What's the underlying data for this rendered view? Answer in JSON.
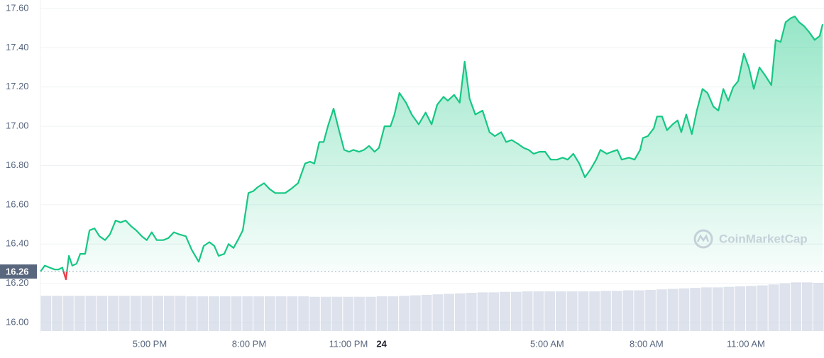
{
  "chart_data": {
    "type": "line",
    "xlim": [
      13.7,
      37.36
    ],
    "xticks": [
      {
        "value": 17,
        "label": "5:00 PM"
      },
      {
        "value": 20,
        "label": "8:00 PM"
      },
      {
        "value": 23,
        "label": "11:00 PM"
      },
      {
        "value": 24,
        "label": "24"
      },
      {
        "value": 29,
        "label": "5:00 AM"
      },
      {
        "value": 32,
        "label": "8:00 AM"
      },
      {
        "value": 35,
        "label": "11:00 AM"
      }
    ],
    "ylim": [
      16.0,
      17.6
    ],
    "yticks": [
      {
        "value": 16.0,
        "label": "16.00"
      },
      {
        "value": 16.2,
        "label": "16.20"
      },
      {
        "value": 16.4,
        "label": "16.40"
      },
      {
        "value": 16.6,
        "label": "16.60"
      },
      {
        "value": 16.8,
        "label": "16.80"
      },
      {
        "value": 17.0,
        "label": "17.00"
      },
      {
        "value": 17.2,
        "label": "17.20"
      },
      {
        "value": 17.4,
        "label": "17.40"
      },
      {
        "value": 17.6,
        "label": "17.60"
      }
    ],
    "grid": true,
    "baseline": 16.26,
    "watermark": "CoinMarketCap",
    "color": "#16c784",
    "down_color": "#ea3943",
    "x": [
      13.7,
      13.83,
      13.98,
      14.13,
      14.24,
      14.36,
      14.47,
      14.56,
      14.66,
      14.79,
      14.9,
      15.05,
      15.18,
      15.33,
      15.48,
      15.65,
      15.8,
      15.97,
      16.12,
      16.27,
      16.44,
      16.59,
      16.76,
      16.91,
      17.06,
      17.21,
      17.41,
      17.56,
      17.73,
      17.88,
      18.09,
      18.27,
      18.48,
      18.63,
      18.8,
      18.95,
      19.08,
      19.25,
      19.38,
      19.53,
      19.66,
      19.81,
      19.98,
      20.13,
      20.26,
      20.45,
      20.62,
      20.79,
      20.94,
      21.09,
      21.26,
      21.48,
      21.69,
      21.84,
      21.97,
      22.12,
      22.25,
      22.38,
      22.55,
      22.7,
      22.87,
      23.02,
      23.15,
      23.32,
      23.47,
      23.62,
      23.79,
      23.92,
      24.09,
      24.27,
      24.39,
      24.54,
      24.74,
      24.91,
      25.12,
      25.33,
      25.51,
      25.68,
      25.87,
      26.0,
      26.19,
      26.36,
      26.51,
      26.66,
      26.83,
      27.05,
      27.26,
      27.42,
      27.61,
      27.76,
      27.93,
      28.12,
      28.29,
      28.44,
      28.59,
      28.77,
      28.94,
      29.11,
      29.3,
      29.47,
      29.62,
      29.79,
      29.97,
      30.14,
      30.31,
      30.48,
      30.61,
      30.8,
      30.95,
      31.12,
      31.25,
      31.47,
      31.64,
      31.81,
      31.89,
      32.04,
      32.22,
      32.32,
      32.47,
      32.62,
      32.79,
      32.94,
      33.05,
      33.2,
      33.37,
      33.52,
      33.69,
      33.84,
      34.02,
      34.17,
      34.32,
      34.47,
      34.62,
      34.77,
      34.94,
      35.09,
      35.24,
      35.41,
      35.58,
      35.77,
      35.9,
      36.05,
      36.2,
      36.35,
      36.48,
      36.61,
      36.76,
      36.91,
      37.08,
      37.23,
      37.32
    ],
    "values": [
      16.26,
      16.29,
      16.28,
      16.27,
      16.27,
      16.28,
      16.22,
      16.34,
      16.29,
      16.3,
      16.35,
      16.35,
      16.47,
      16.48,
      16.44,
      16.42,
      16.45,
      16.52,
      16.51,
      16.52,
      16.49,
      16.47,
      16.44,
      16.42,
      16.46,
      16.42,
      16.42,
      16.43,
      16.46,
      16.45,
      16.44,
      16.37,
      16.31,
      16.39,
      16.41,
      16.39,
      16.34,
      16.35,
      16.4,
      16.38,
      16.42,
      16.47,
      16.66,
      16.67,
      16.69,
      16.71,
      16.68,
      16.66,
      16.66,
      16.66,
      16.68,
      16.71,
      16.81,
      16.82,
      16.81,
      16.92,
      16.92,
      17.0,
      17.09,
      16.99,
      16.88,
      16.87,
      16.88,
      16.87,
      16.88,
      16.9,
      16.87,
      16.89,
      17.0,
      17.0,
      17.06,
      17.17,
      17.12,
      17.06,
      17.01,
      17.07,
      17.01,
      17.11,
      17.15,
      17.13,
      17.16,
      17.12,
      17.33,
      17.14,
      17.06,
      17.08,
      16.97,
      16.95,
      16.97,
      16.92,
      16.93,
      16.91,
      16.89,
      16.88,
      16.86,
      16.87,
      16.87,
      16.83,
      16.83,
      16.84,
      16.83,
      16.86,
      16.81,
      16.74,
      16.78,
      16.83,
      16.88,
      16.86,
      16.87,
      16.88,
      16.83,
      16.84,
      16.83,
      16.88,
      16.94,
      16.95,
      16.99,
      17.05,
      17.05,
      16.98,
      17.01,
      17.03,
      16.97,
      17.06,
      16.96,
      17.08,
      17.19,
      17.17,
      17.1,
      17.08,
      17.19,
      17.13,
      17.2,
      17.23,
      17.37,
      17.3,
      17.19,
      17.3,
      17.26,
      17.21,
      17.44,
      17.43,
      17.53,
      17.55,
      17.56,
      17.53,
      17.51,
      17.48,
      17.44,
      17.46,
      17.52
    ],
    "volume": {
      "color": "#cfd6e4",
      "ylim": [
        0,
        100
      ],
      "values": [
        71,
        71,
        71,
        71,
        71,
        71,
        71,
        71,
        71,
        71,
        71,
        71,
        71,
        70,
        70,
        70,
        70,
        70,
        70,
        70,
        70,
        70,
        70,
        70,
        69,
        69,
        69,
        69,
        69,
        69,
        70,
        70,
        71,
        72,
        73,
        74,
        75,
        76,
        77,
        78,
        78,
        79,
        79,
        80,
        80,
        80,
        80,
        80,
        80,
        80,
        81,
        81,
        82,
        82,
        83,
        84,
        85,
        86,
        87,
        88,
        88,
        89,
        90,
        91,
        92,
        94,
        96,
        98,
        98,
        97
      ]
    }
  }
}
